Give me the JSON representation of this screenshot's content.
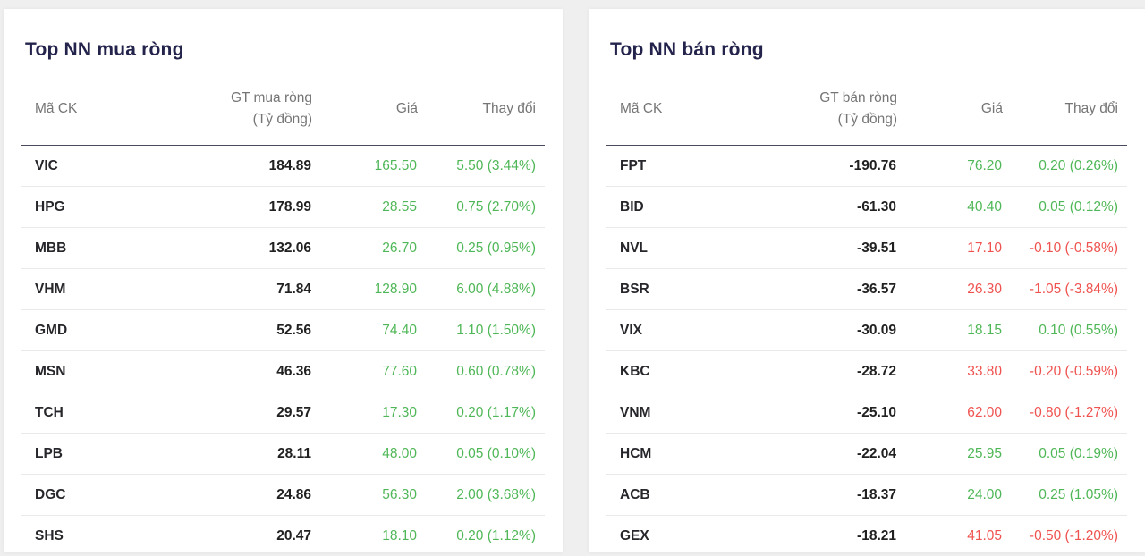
{
  "colors": {
    "up": "#4fb757",
    "down": "#ef5350",
    "title": "#23234c",
    "header_text": "#757575",
    "ticker_text": "#26262b",
    "value_text": "#212121",
    "header_divider": "#4a4a5e",
    "row_divider": "#e9e9e9",
    "card_bg": "#ffffff",
    "page_bg": "#efefef"
  },
  "tables": [
    {
      "title": "Top NN mua ròng",
      "headers": {
        "ticker": "Mã CK",
        "value_line1": "GT mua ròng",
        "value_line2": "(Tỷ đồng)",
        "price": "Giá",
        "change": "Thay đổi"
      },
      "rows": [
        {
          "ticker": "VIC",
          "value": "184.89",
          "price": "165.50",
          "change": "5.50 (3.44%)",
          "trend": "up"
        },
        {
          "ticker": "HPG",
          "value": "178.99",
          "price": "28.55",
          "change": "0.75 (2.70%)",
          "trend": "up"
        },
        {
          "ticker": "MBB",
          "value": "132.06",
          "price": "26.70",
          "change": "0.25 (0.95%)",
          "trend": "up"
        },
        {
          "ticker": "VHM",
          "value": "71.84",
          "price": "128.90",
          "change": "6.00 (4.88%)",
          "trend": "up"
        },
        {
          "ticker": "GMD",
          "value": "52.56",
          "price": "74.40",
          "change": "1.10 (1.50%)",
          "trend": "up"
        },
        {
          "ticker": "MSN",
          "value": "46.36",
          "price": "77.60",
          "change": "0.60 (0.78%)",
          "trend": "up"
        },
        {
          "ticker": "TCH",
          "value": "29.57",
          "price": "17.30",
          "change": "0.20 (1.17%)",
          "trend": "up"
        },
        {
          "ticker": "LPB",
          "value": "28.11",
          "price": "48.00",
          "change": "0.05 (0.10%)",
          "trend": "up"
        },
        {
          "ticker": "DGC",
          "value": "24.86",
          "price": "56.30",
          "change": "2.00 (3.68%)",
          "trend": "up"
        },
        {
          "ticker": "SHS",
          "value": "20.47",
          "price": "18.10",
          "change": "0.20 (1.12%)",
          "trend": "up"
        }
      ]
    },
    {
      "title": "Top NN bán ròng",
      "headers": {
        "ticker": "Mã CK",
        "value_line1": "GT bán ròng",
        "value_line2": "(Tỷ đồng)",
        "price": "Giá",
        "change": "Thay đổi"
      },
      "rows": [
        {
          "ticker": "FPT",
          "value": "-190.76",
          "price": "76.20",
          "change": "0.20 (0.26%)",
          "trend": "up"
        },
        {
          "ticker": "BID",
          "value": "-61.30",
          "price": "40.40",
          "change": "0.05 (0.12%)",
          "trend": "up"
        },
        {
          "ticker": "NVL",
          "value": "-39.51",
          "price": "17.10",
          "change": "-0.10 (-0.58%)",
          "trend": "down"
        },
        {
          "ticker": "BSR",
          "value": "-36.57",
          "price": "26.30",
          "change": "-1.05 (-3.84%)",
          "trend": "down"
        },
        {
          "ticker": "VIX",
          "value": "-30.09",
          "price": "18.15",
          "change": "0.10 (0.55%)",
          "trend": "up"
        },
        {
          "ticker": "KBC",
          "value": "-28.72",
          "price": "33.80",
          "change": "-0.20 (-0.59%)",
          "trend": "down"
        },
        {
          "ticker": "VNM",
          "value": "-25.10",
          "price": "62.00",
          "change": "-0.80 (-1.27%)",
          "trend": "down"
        },
        {
          "ticker": "HCM",
          "value": "-22.04",
          "price": "25.95",
          "change": "0.05 (0.19%)",
          "trend": "up"
        },
        {
          "ticker": "ACB",
          "value": "-18.37",
          "price": "24.00",
          "change": "0.25 (1.05%)",
          "trend": "up"
        },
        {
          "ticker": "GEX",
          "value": "-18.21",
          "price": "41.05",
          "change": "-0.50 (-1.20%)",
          "trend": "down"
        }
      ]
    }
  ]
}
